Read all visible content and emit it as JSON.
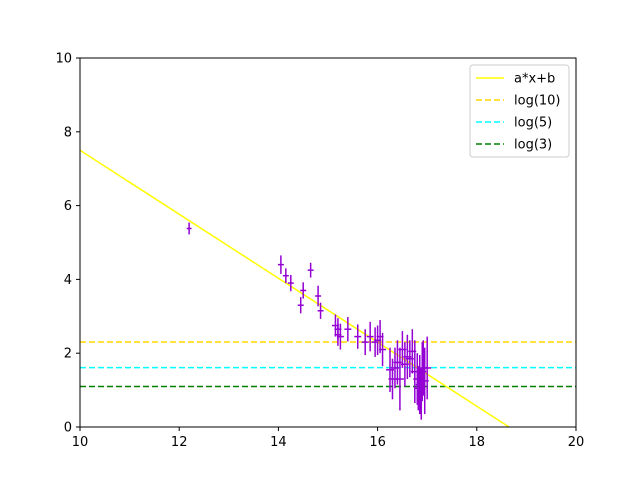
{
  "chart_data": {
    "type": "scatter",
    "title": "",
    "xlabel": "",
    "ylabel": "",
    "xlim": [
      10,
      20
    ],
    "ylim": [
      0,
      10
    ],
    "xticks": [
      "10",
      "12",
      "14",
      "16",
      "18",
      "20"
    ],
    "yticks": [
      "0",
      "2",
      "4",
      "6",
      "8",
      "10"
    ],
    "grid": false,
    "legend_position": "top-right",
    "points": {
      "color": "#9400D3",
      "x": [
        12.2,
        14.05,
        14.15,
        14.25,
        14.45,
        14.5,
        14.65,
        14.8,
        14.85,
        15.15,
        15.2,
        15.2,
        15.25,
        15.4,
        15.6,
        15.75,
        15.85,
        15.95,
        16.0,
        16.05,
        16.1,
        16.25,
        16.3,
        16.35,
        16.4,
        16.45,
        16.5,
        16.55,
        16.6,
        16.65,
        16.7,
        16.75,
        16.8,
        16.82,
        16.85,
        16.88,
        16.9,
        16.92,
        16.95,
        17.0
      ],
      "y": [
        5.38,
        4.4,
        4.1,
        3.9,
        3.3,
        3.7,
        4.25,
        3.55,
        3.15,
        2.75,
        2.5,
        2.65,
        2.45,
        2.65,
        2.45,
        2.3,
        2.45,
        2.3,
        2.35,
        2.45,
        2.1,
        1.55,
        1.3,
        1.6,
        1.75,
        1.3,
        2.1,
        1.7,
        1.9,
        1.85,
        2.05,
        1.5,
        1.3,
        1.05,
        1.15,
        0.9,
        1.5,
        1.6,
        1.25,
        1.6
      ],
      "yerr": [
        0.16,
        0.25,
        0.2,
        0.22,
        0.22,
        0.22,
        0.2,
        0.28,
        0.22,
        0.3,
        0.3,
        0.3,
        0.35,
        0.33,
        0.33,
        0.35,
        0.4,
        0.4,
        0.4,
        0.45,
        0.45,
        0.6,
        0.55,
        0.55,
        0.6,
        0.85,
        0.5,
        0.6,
        0.6,
        0.5,
        0.6,
        0.85,
        0.7,
        0.6,
        0.8,
        0.7,
        0.8,
        0.75,
        0.9,
        0.85
      ],
      "xerr": [
        0.05,
        0.06,
        0.06,
        0.06,
        0.06,
        0.06,
        0.06,
        0.06,
        0.06,
        0.07,
        0.07,
        0.07,
        0.07,
        0.07,
        0.07,
        0.07,
        0.07,
        0.07,
        0.07,
        0.07,
        0.07,
        0.08,
        0.08,
        0.08,
        0.08,
        0.08,
        0.08,
        0.08,
        0.08,
        0.08,
        0.08,
        0.08,
        0.08,
        0.08,
        0.08,
        0.08,
        0.08,
        0.08,
        0.08,
        0.08
      ]
    },
    "series": [
      {
        "name": "a*x+b",
        "kind": "fit-line",
        "color": "#FFFF00",
        "dash": "solid",
        "x": [
          10,
          18.65
        ],
        "y": [
          7.5,
          0
        ]
      },
      {
        "name": "log(10)",
        "kind": "hline",
        "color": "#FFD700",
        "dash": "dashed",
        "y": 2.3026
      },
      {
        "name": "log(5)",
        "kind": "hline",
        "color": "#00FFFF",
        "dash": "dashed",
        "y": 1.6094
      },
      {
        "name": "log(3)",
        "kind": "hline",
        "color": "#008000",
        "dash": "dashed",
        "y": 1.0986
      }
    ]
  }
}
